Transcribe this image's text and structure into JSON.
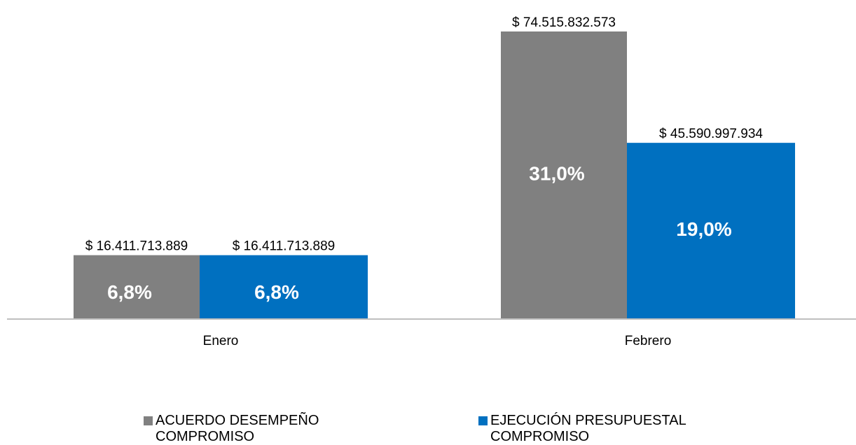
{
  "chart_data": {
    "type": "bar",
    "categories": [
      "Enero",
      "Febrero"
    ],
    "series": [
      {
        "name": "ACUERDO DESEMPEÑO COMPROMISO",
        "color": "#808080",
        "values": [
          16411713889,
          74515832573
        ],
        "value_labels": [
          "$ 16.411.713.889",
          "$ 74.515.832.573"
        ],
        "percents": [
          6.8,
          31.0
        ],
        "percent_labels": [
          "6,8%",
          "31,0%"
        ]
      },
      {
        "name": "EJECUCIÓN PRESUPUESTAL COMPROMISO",
        "color": "#0070c0",
        "values": [
          16411713889,
          45590997934
        ],
        "value_labels": [
          "$ 16.411.713.889",
          "$ 45.590.997.934"
        ],
        "percents": [
          6.8,
          19.0
        ],
        "percent_labels": [
          "6,8%",
          "19,0%"
        ]
      }
    ]
  }
}
